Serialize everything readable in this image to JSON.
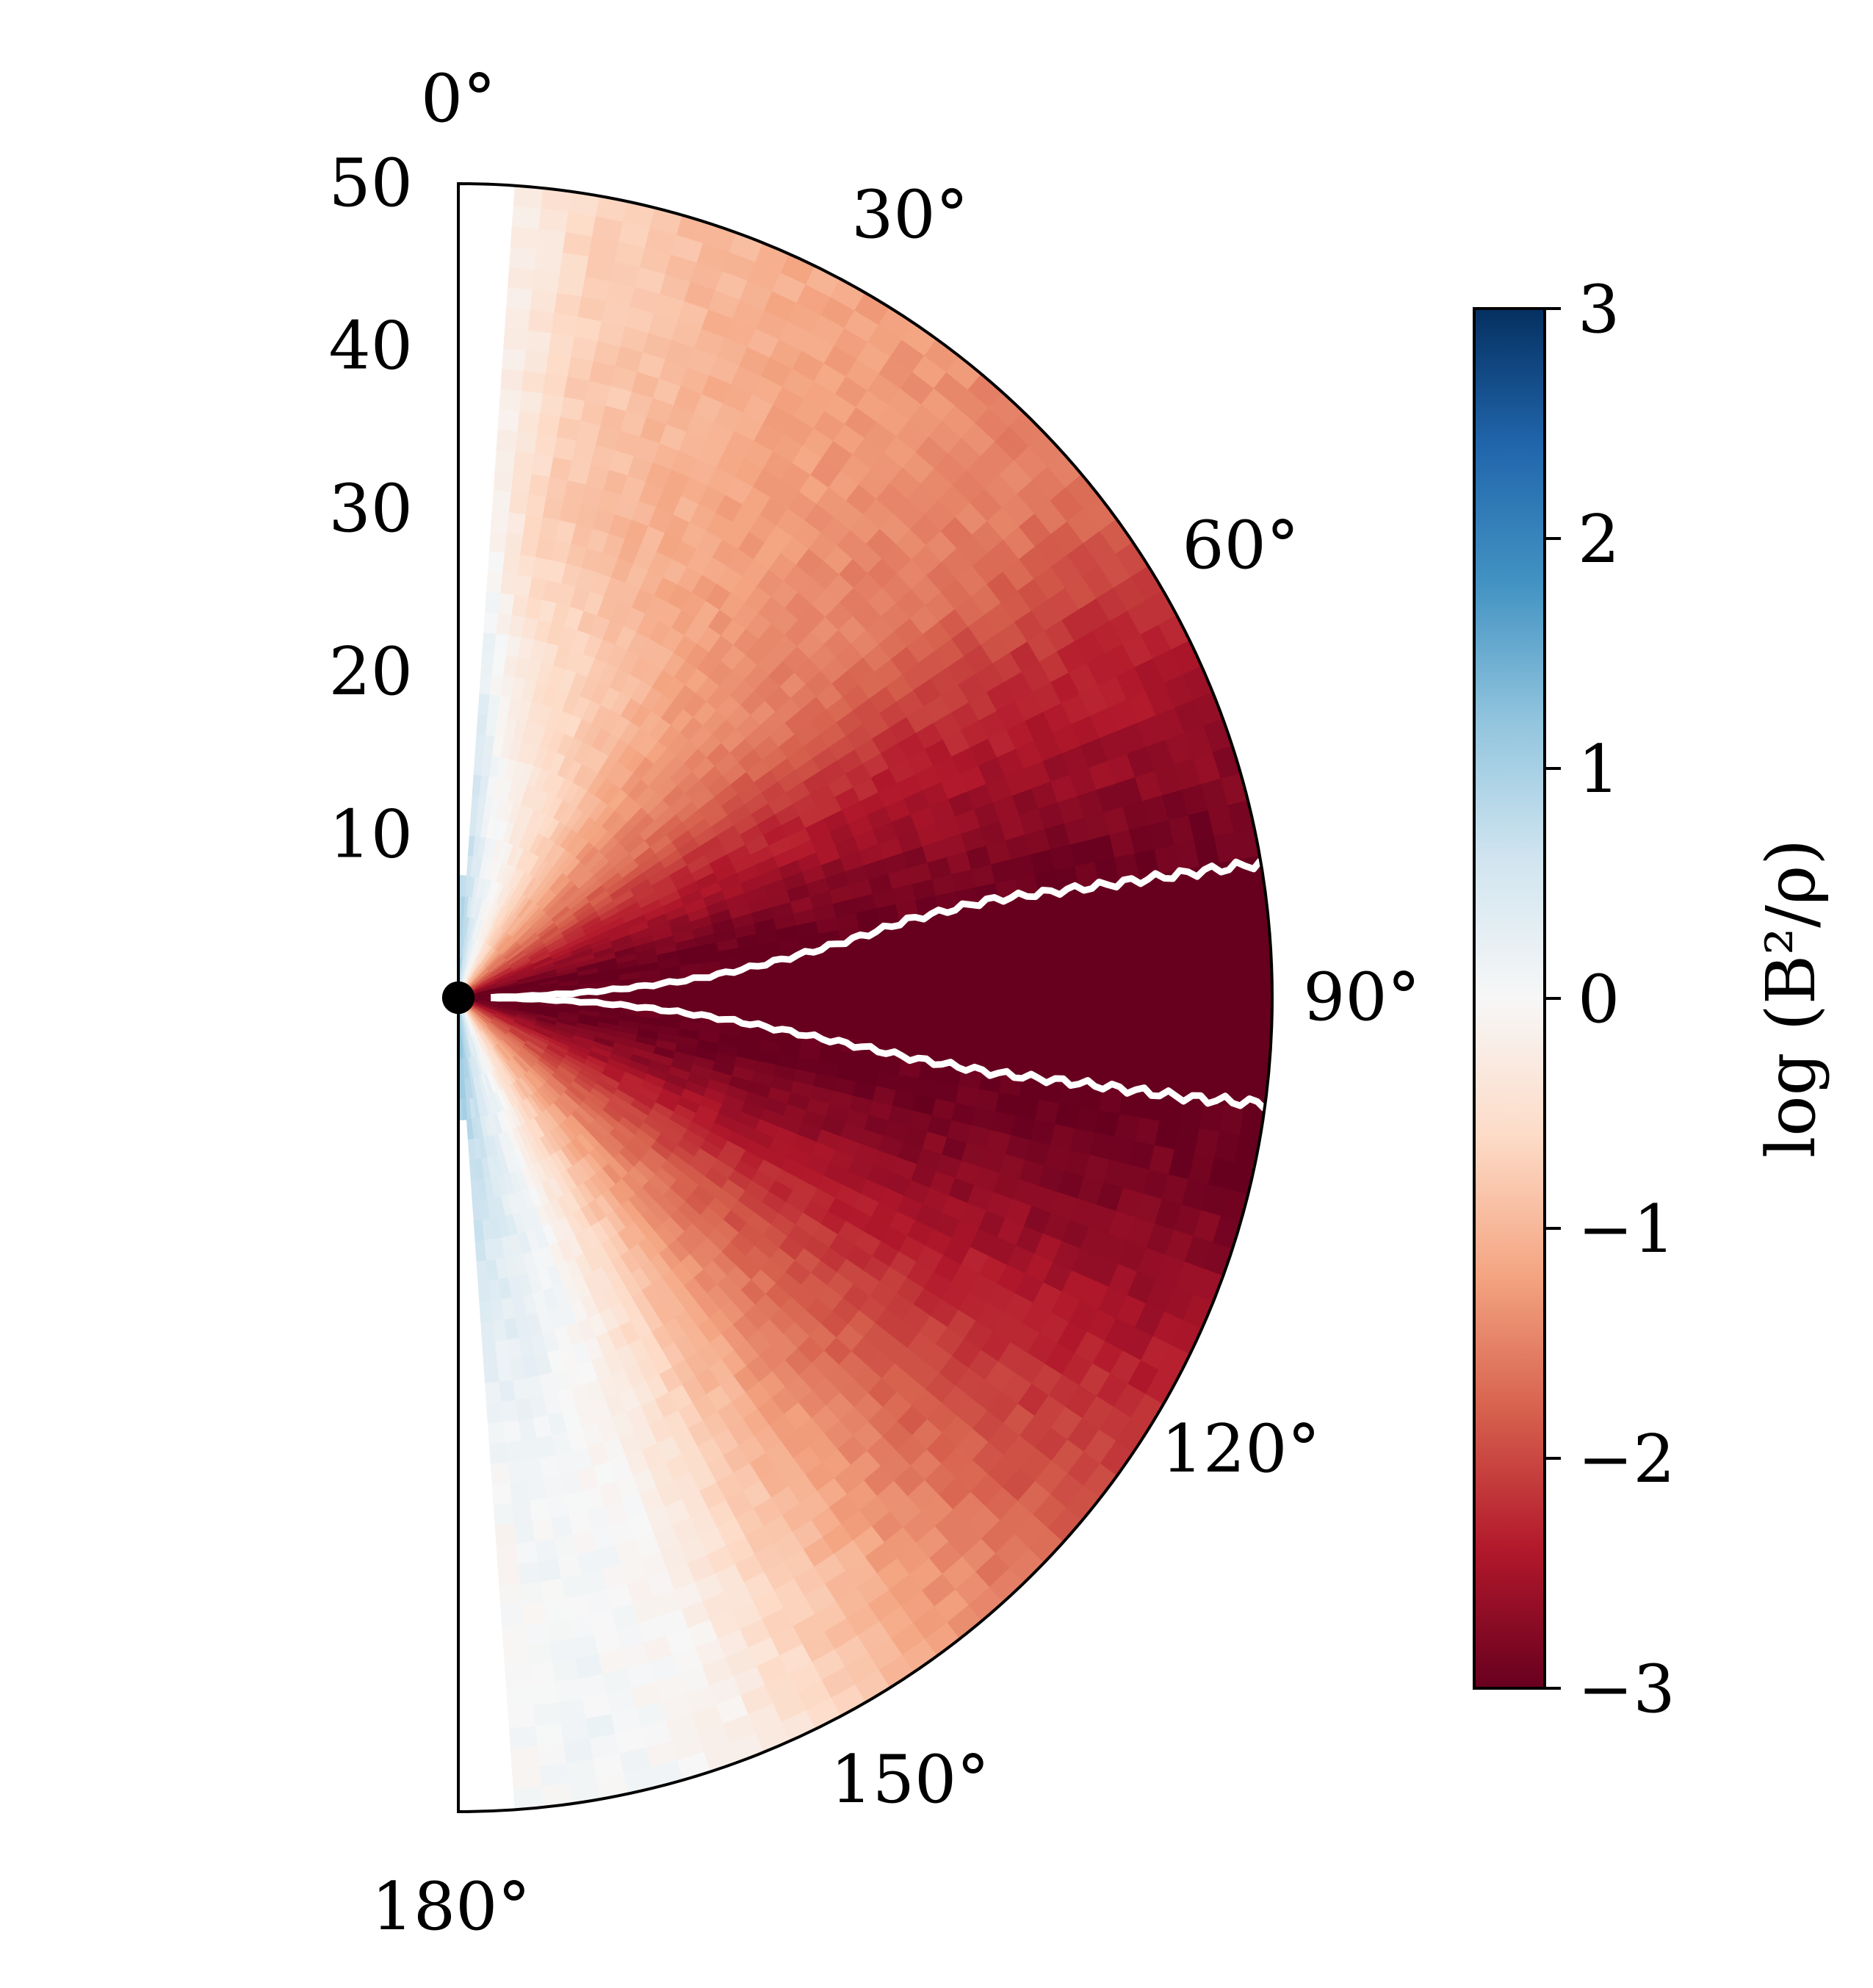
{
  "chart_data": {
    "type": "heatmap",
    "projection": "polar-half",
    "radial_axis": {
      "range": [
        0,
        50
      ],
      "ticks": [
        10,
        20,
        30,
        40,
        50
      ],
      "tick_labels": [
        "10",
        "20",
        "30",
        "40",
        "50"
      ]
    },
    "angular_axis": {
      "range": [
        0,
        180
      ],
      "zero_at": "top",
      "direction": "clockwise",
      "ticks": [
        0,
        30,
        60,
        90,
        120,
        150,
        180
      ],
      "tick_labels": [
        "0°",
        "30°",
        "60°",
        "90°",
        "120°",
        "150°",
        "180°"
      ]
    },
    "colorbar": {
      "label": "log (B²/ρ)",
      "range": [
        -3,
        3
      ],
      "ticks": [
        3,
        2,
        1,
        0,
        -1,
        -2,
        -3
      ],
      "tick_labels": [
        "3",
        "2",
        "1",
        "0",
        "−1",
        "−2",
        "−3"
      ],
      "colormap": "RdBu"
    },
    "colors": {
      "min": "#67001f",
      "max": "#053061",
      "contour": "#ffffff",
      "black_hole": "#000000"
    },
    "field_profile": {
      "theta_deg": [
        0,
        5,
        10,
        20,
        30,
        40,
        50,
        60,
        70,
        80,
        85,
        90,
        95,
        100,
        110,
        120,
        130,
        140,
        150,
        160,
        170,
        175,
        180
      ],
      "log_value_near_center": [
        1.2,
        1.0,
        0.6,
        0.1,
        -0.5,
        -1.1,
        -1.6,
        -2.1,
        -2.6,
        -3.0,
        -3.0,
        -3.0,
        -3.0,
        -3.0,
        -2.6,
        -2.1,
        -1.6,
        -1.1,
        -0.5,
        0.2,
        0.7,
        1.1,
        1.4
      ],
      "log_value_outer": [
        0.0,
        -0.2,
        -0.7,
        -1.0,
        -1.2,
        -1.4,
        -1.6,
        -2.2,
        -2.6,
        -3.0,
        -3.0,
        -3.0,
        -3.0,
        -3.0,
        -2.7,
        -2.3,
        -1.9,
        -1.4,
        -0.8,
        -0.1,
        0.1,
        0.0,
        0.0
      ]
    },
    "contour_boundaries": {
      "upper": [
        [
          2,
          89.2
        ],
        [
          8,
          87.5
        ],
        [
          15,
          85.3
        ],
        [
          22,
          82.5
        ],
        [
          28,
          80.2
        ],
        [
          33,
          79.6
        ],
        [
          40,
          80.1
        ],
        [
          45,
          80.3
        ],
        [
          50,
          80.5
        ]
      ],
      "lower": [
        [
          2,
          90.4
        ],
        [
          8,
          92.0
        ],
        [
          15,
          94.2
        ],
        [
          22,
          96.3
        ],
        [
          28,
          97.6
        ],
        [
          33,
          98.0
        ],
        [
          40,
          97.8
        ],
        [
          45,
          97.8
        ],
        [
          50,
          97.5
        ]
      ]
    },
    "inner_cutoff_radius": 1.0,
    "axis_empty_theta_range_deg": [
      0,
      4
    ]
  }
}
